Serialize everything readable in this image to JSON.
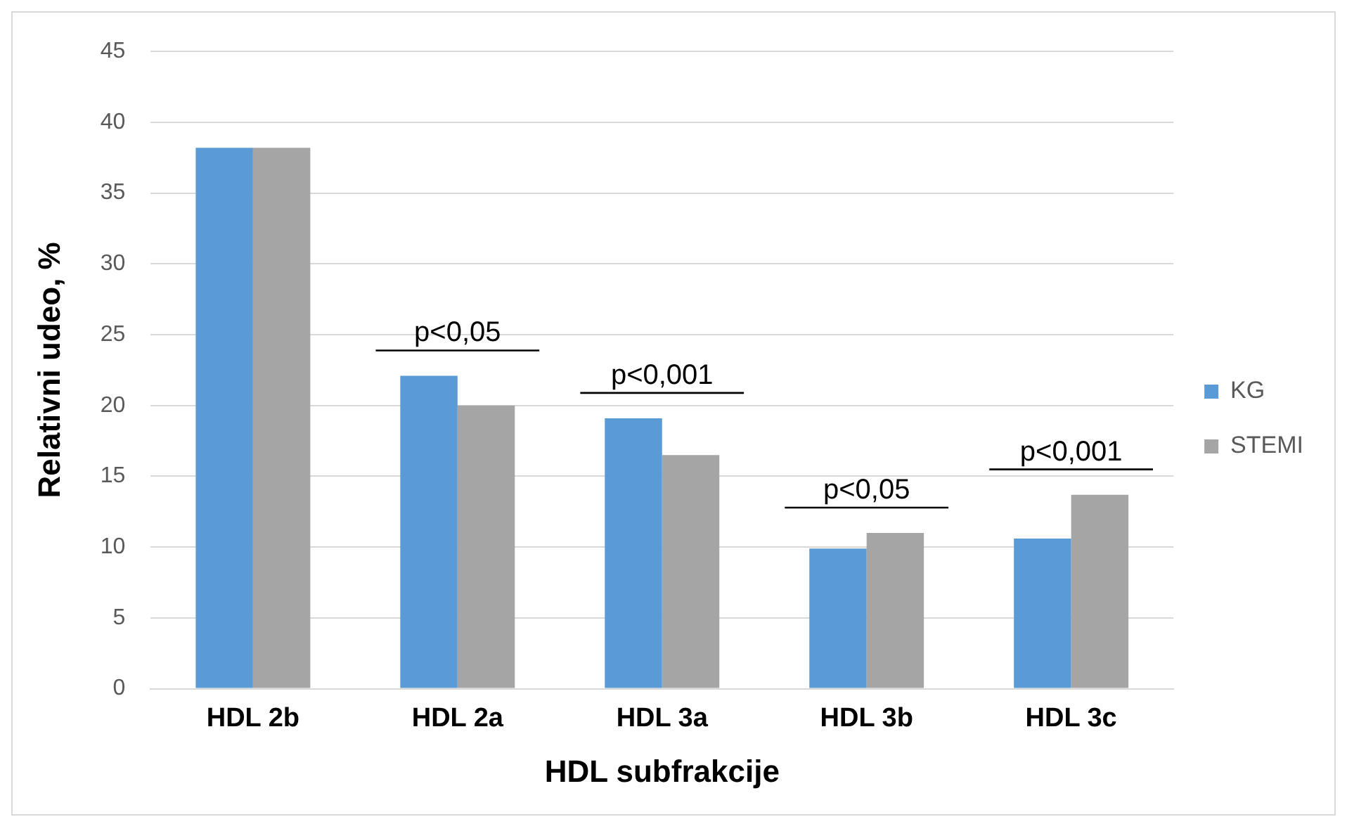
{
  "chart_data": {
    "type": "bar",
    "xlabel": "HDL subfrakcije",
    "ylabel": "Relativni udeo, %",
    "categories": [
      "HDL 2b",
      "HDL 2a",
      "HDL 3a",
      "HDL 3b",
      "HDL 3c"
    ],
    "series": [
      {
        "name": "KG",
        "color": "#5b9bd5",
        "values": [
          38.2,
          22.1,
          19.1,
          9.9,
          10.6
        ]
      },
      {
        "name": "STEMI",
        "color": "#a5a5a5",
        "values": [
          38.2,
          20.0,
          16.5,
          11.0,
          13.7
        ]
      }
    ],
    "ylim": [
      0,
      45
    ],
    "yticks": [
      0,
      5,
      10,
      15,
      20,
      25,
      30,
      35,
      40,
      45
    ],
    "grid": "y",
    "legend": "right",
    "annotations": [
      "p<0,05",
      "p<0,001",
      "p<0,05",
      "p<0,001"
    ]
  }
}
